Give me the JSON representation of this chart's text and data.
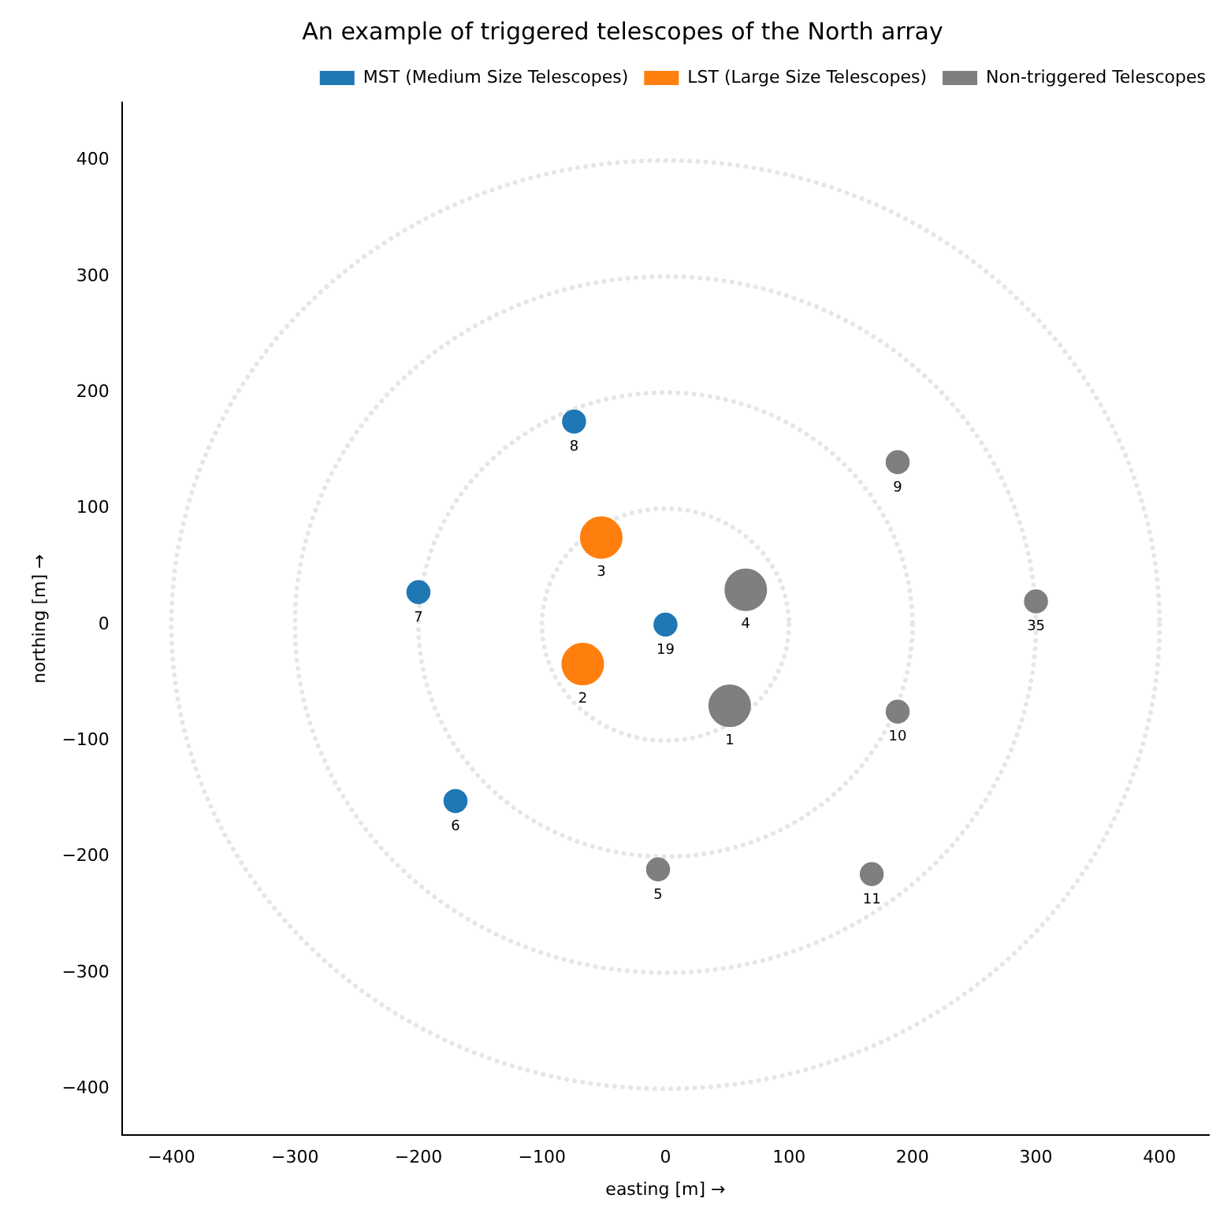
{
  "chart_data": {
    "type": "bubble",
    "title": "An example of triggered telescopes of the North array",
    "xlabel": "easting [m] →",
    "ylabel": "northing [m] →",
    "xlim": [
      -440,
      440
    ],
    "ylim": [
      -440,
      450
    ],
    "xticks": [
      {
        "value": -400,
        "label": "−400"
      },
      {
        "value": -300,
        "label": "−300"
      },
      {
        "value": -200,
        "label": "−200"
      },
      {
        "value": -100,
        "label": "−100"
      },
      0,
      100,
      200,
      300,
      400
    ],
    "yticks": [
      {
        "value": -400,
        "label": "−400"
      },
      {
        "value": -300,
        "label": "−300"
      },
      {
        "value": -200,
        "label": "−200"
      },
      {
        "value": -100,
        "label": "−100"
      },
      0,
      100,
      200,
      300,
      400
    ],
    "grid": false,
    "legend": "top right",
    "series": [
      {
        "name": "MST (Medium Size Telescopes)",
        "color": "#1f77b4",
        "x": [
          -74,
          0,
          -200,
          -170
        ],
        "values": [
          175,
          0,
          28,
          -152
        ],
        "sizes": [
          0.3,
          0.3,
          0.3,
          0.3
        ]
      },
      {
        "name": "LST (Large Size Telescopes)",
        "color": "#ff7f0e",
        "x": [
          -52,
          -67
        ],
        "values": [
          75,
          -34
        ],
        "sizes": [
          1,
          1
        ]
      },
      {
        "name": "Non-triggered Telescopes",
        "color": "#7f7f7f",
        "x": [
          65,
          52,
          188,
          300,
          188,
          167,
          -6
        ],
        "values": [
          30,
          -70,
          140,
          20,
          -75,
          -215,
          -211
        ],
        "sizes": [
          1,
          1,
          0.3,
          0.3,
          0.3,
          0.3,
          0.3
        ]
      }
    ],
    "annotations": [
      {
        "text": "8",
        "x": -74,
        "y": 175
      },
      {
        "text": "19",
        "x": 0,
        "y": 0
      },
      {
        "text": "7",
        "x": -200,
        "y": 28
      },
      {
        "text": "6",
        "x": -170,
        "y": -152
      },
      {
        "text": "3",
        "x": -52,
        "y": 75
      },
      {
        "text": "2",
        "x": -67,
        "y": -34
      },
      {
        "text": "4",
        "x": 65,
        "y": 30
      },
      {
        "text": "1",
        "x": 52,
        "y": -70
      },
      {
        "text": "9",
        "x": 188,
        "y": 140
      },
      {
        "text": "35",
        "x": 300,
        "y": 20
      },
      {
        "text": "10",
        "x": 188,
        "y": -75
      },
      {
        "text": "11",
        "x": 167,
        "y": -215
      },
      {
        "text": "5",
        "x": -6,
        "y": -211
      }
    ]
  }
}
